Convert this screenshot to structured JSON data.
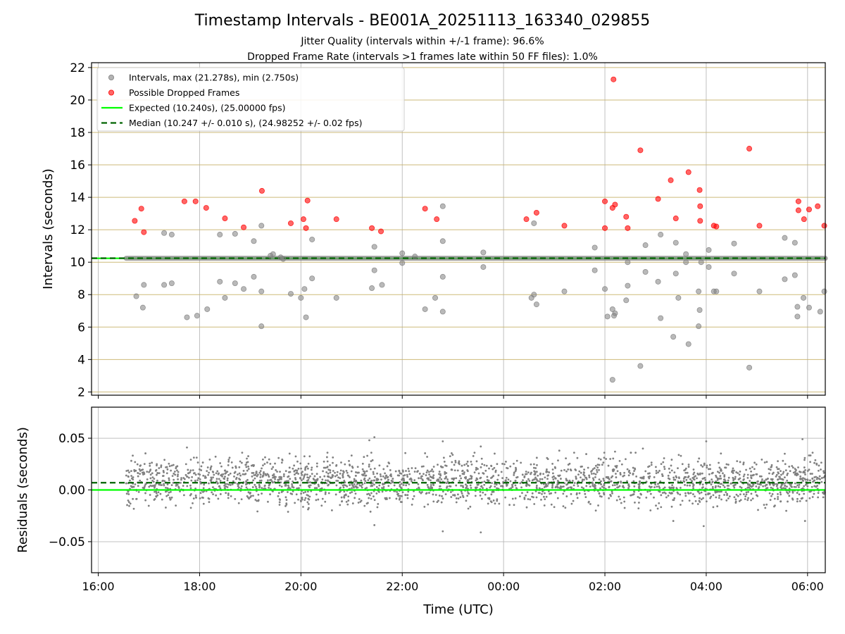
{
  "figure": {
    "title": "Timestamp Intervals - BE001A_20251113_163340_029855",
    "subtitle1": "Jitter Quality (intervals within +/-1 frame): 96.6%",
    "subtitle2": "Dropped Frame Rate (intervals >1 frames late within 50 FF files): 1.0%",
    "xlabel": "Time (UTC)"
  },
  "colors": {
    "interval_points": "#808080",
    "dropped_points": "#ff0000",
    "expected_line": "#00ff00",
    "median_line": "#006400",
    "ygrid_top": "#c8b26a",
    "grid": "#b0b0b0"
  },
  "chart_data": [
    {
      "type": "scatter",
      "name": "intervals",
      "ylabel": "Intervals (seconds)",
      "x_range_hours": [
        15.867,
        30.35
      ],
      "ylim": [
        1.8,
        22.3
      ],
      "yticks": [
        2,
        4,
        6,
        8,
        10,
        12,
        14,
        16,
        18,
        20,
        22
      ],
      "ytick_labels": [
        "2",
        "4",
        "6",
        "8",
        "10",
        "12",
        "14",
        "16",
        "18",
        "20",
        "22"
      ],
      "xticks": [
        16,
        18,
        20,
        22,
        24,
        26,
        28,
        30
      ],
      "xtick_labels": [
        "16:00",
        "18:00",
        "20:00",
        "22:00",
        "00:00",
        "02:00",
        "04:00",
        "06:00"
      ],
      "grid": true,
      "legend_position": "top-left",
      "expected": 10.24,
      "median": 10.247,
      "baseline_band": {
        "x_start": 16.55,
        "x_end": 30.35,
        "y": 10.24
      },
      "legend": [
        {
          "label": "Intervals, max (21.278s), min (2.750s)",
          "kind": "dot-gray"
        },
        {
          "label": "Possible Dropped Frames",
          "kind": "dot-red"
        },
        {
          "label": "Expected (10.240s), (25.00000 fps)",
          "kind": "line-expected"
        },
        {
          "label": "Median (10.247 +/- 0.010 s), (24.98252 +/- 0.02 fps)",
          "kind": "line-median"
        }
      ],
      "series": [
        {
          "name": "Intervals",
          "points": [
            [
              16.75,
              7.9
            ],
            [
              16.88,
              7.2
            ],
            [
              16.9,
              8.6
            ],
            [
              17.3,
              8.6
            ],
            [
              17.3,
              11.8
            ],
            [
              17.45,
              8.7
            ],
            [
              17.45,
              11.7
            ],
            [
              17.75,
              6.6
            ],
            [
              17.95,
              6.7
            ],
            [
              18.15,
              7.1
            ],
            [
              18.4,
              8.8
            ],
            [
              18.4,
              11.7
            ],
            [
              18.5,
              7.8
            ],
            [
              18.7,
              8.7
            ],
            [
              18.7,
              11.75
            ],
            [
              18.87,
              8.35
            ],
            [
              19.07,
              9.1
            ],
            [
              19.07,
              11.3
            ],
            [
              19.22,
              8.2
            ],
            [
              19.22,
              12.25
            ],
            [
              19.22,
              6.05
            ],
            [
              19.4,
              10.4
            ],
            [
              19.45,
              10.5
            ],
            [
              19.6,
              10.3
            ],
            [
              19.65,
              10.2
            ],
            [
              19.8,
              8.05
            ],
            [
              20.0,
              7.8
            ],
            [
              20.07,
              8.35
            ],
            [
              20.1,
              6.6
            ],
            [
              20.22,
              9.0
            ],
            [
              20.22,
              11.4
            ],
            [
              20.7,
              7.8
            ],
            [
              21.4,
              8.4
            ],
            [
              21.45,
              9.5
            ],
            [
              21.45,
              10.95
            ],
            [
              21.6,
              8.6
            ],
            [
              22.0,
              10.55
            ],
            [
              22.0,
              9.95
            ],
            [
              22.25,
              10.35
            ],
            [
              22.45,
              7.1
            ],
            [
              22.65,
              7.8
            ],
            [
              22.8,
              6.95
            ],
            [
              22.8,
              9.1
            ],
            [
              22.8,
              11.3
            ],
            [
              22.8,
              13.45
            ],
            [
              23.6,
              9.7
            ],
            [
              23.6,
              10.6
            ],
            [
              24.55,
              7.8
            ],
            [
              24.6,
              8.0
            ],
            [
              24.6,
              12.4
            ],
            [
              24.65,
              7.4
            ],
            [
              25.2,
              8.2
            ],
            [
              25.8,
              9.5
            ],
            [
              25.8,
              10.9
            ],
            [
              26.0,
              8.35
            ],
            [
              26.05,
              6.65
            ],
            [
              26.15,
              2.75
            ],
            [
              26.15,
              7.1
            ],
            [
              26.18,
              6.7
            ],
            [
              26.2,
              6.85
            ],
            [
              26.42,
              7.65
            ],
            [
              26.45,
              8.55
            ],
            [
              26.45,
              10.0
            ],
            [
              26.7,
              3.6
            ],
            [
              26.8,
              9.4
            ],
            [
              26.8,
              11.05
            ],
            [
              27.05,
              8.8
            ],
            [
              27.1,
              6.55
            ],
            [
              27.1,
              11.7
            ],
            [
              27.35,
              5.4
            ],
            [
              27.4,
              9.3
            ],
            [
              27.4,
              11.2
            ],
            [
              27.45,
              7.8
            ],
            [
              27.6,
              10.5
            ],
            [
              27.6,
              10.0
            ],
            [
              27.65,
              4.95
            ],
            [
              27.85,
              8.2
            ],
            [
              27.85,
              6.05
            ],
            [
              27.87,
              7.05
            ],
            [
              27.9,
              10.0
            ],
            [
              28.05,
              9.7
            ],
            [
              28.05,
              10.75
            ],
            [
              28.15,
              8.2
            ],
            [
              28.2,
              8.2
            ],
            [
              28.55,
              9.3
            ],
            [
              28.55,
              11.15
            ],
            [
              28.85,
              3.5
            ],
            [
              29.05,
              8.2
            ],
            [
              29.55,
              8.95
            ],
            [
              29.55,
              11.5
            ],
            [
              29.75,
              9.2
            ],
            [
              29.75,
              11.2
            ],
            [
              29.8,
              7.25
            ],
            [
              29.8,
              6.65
            ],
            [
              29.92,
              7.8
            ],
            [
              30.03,
              7.2
            ],
            [
              30.25,
              6.95
            ],
            [
              30.33,
              8.2
            ]
          ]
        },
        {
          "name": "Possible Dropped Frames",
          "points": [
            [
              16.72,
              12.55
            ],
            [
              16.85,
              13.3
            ],
            [
              16.9,
              11.85
            ],
            [
              17.7,
              13.75
            ],
            [
              17.92,
              13.75
            ],
            [
              18.13,
              13.35
            ],
            [
              18.5,
              12.7
            ],
            [
              18.87,
              12.15
            ],
            [
              19.23,
              14.4
            ],
            [
              19.8,
              12.4
            ],
            [
              20.05,
              12.65
            ],
            [
              20.1,
              12.1
            ],
            [
              20.13,
              13.8
            ],
            [
              20.7,
              12.65
            ],
            [
              21.4,
              12.1
            ],
            [
              21.58,
              11.9
            ],
            [
              22.45,
              13.3
            ],
            [
              22.68,
              12.65
            ],
            [
              24.45,
              12.65
            ],
            [
              24.65,
              13.05
            ],
            [
              25.2,
              12.25
            ],
            [
              26.0,
              12.1
            ],
            [
              26.0,
              13.75
            ],
            [
              26.15,
              13.35
            ],
            [
              26.17,
              21.27
            ],
            [
              26.2,
              13.55
            ],
            [
              26.42,
              12.8
            ],
            [
              26.45,
              12.1
            ],
            [
              26.7,
              16.9
            ],
            [
              27.05,
              13.9
            ],
            [
              27.3,
              15.05
            ],
            [
              27.4,
              12.7
            ],
            [
              27.65,
              15.55
            ],
            [
              27.87,
              14.45
            ],
            [
              27.88,
              13.45
            ],
            [
              27.88,
              12.55
            ],
            [
              28.15,
              12.25
            ],
            [
              28.2,
              12.2
            ],
            [
              28.85,
              17.0
            ],
            [
              29.05,
              12.25
            ],
            [
              29.82,
              13.75
            ],
            [
              29.82,
              13.2
            ],
            [
              29.93,
              12.65
            ],
            [
              30.03,
              13.25
            ],
            [
              30.2,
              13.45
            ],
            [
              30.33,
              12.25
            ]
          ]
        }
      ]
    },
    {
      "type": "scatter",
      "name": "residuals",
      "ylabel": "Residuals (seconds)",
      "x_range_hours": [
        15.867,
        30.35
      ],
      "ylim": [
        -0.08,
        0.08
      ],
      "yticks": [
        -0.05,
        0.0,
        0.05
      ],
      "ytick_labels": [
        "−0.05",
        "0.00",
        "0.05"
      ],
      "xticks": [
        16,
        18,
        20,
        22,
        24,
        26,
        28,
        30
      ],
      "xtick_labels": [
        "16:00",
        "18:00",
        "20:00",
        "22:00",
        "00:00",
        "02:00",
        "04:00",
        "06:00"
      ],
      "grid": true,
      "expected": 0.0,
      "median": 0.007,
      "noise": {
        "x_start": 16.55,
        "x_end": 30.35,
        "center": 0.008,
        "sd": 0.011,
        "count": 2500
      },
      "outliers": [
        [
          17.75,
          0.041
        ],
        [
          21.35,
          0.048
        ],
        [
          21.45,
          0.051
        ],
        [
          21.45,
          -0.034
        ],
        [
          22.8,
          0.047
        ],
        [
          22.8,
          -0.04
        ],
        [
          23.55,
          0.042
        ],
        [
          23.55,
          -0.041
        ],
        [
          25.1,
          0.038
        ],
        [
          26.2,
          0.037
        ],
        [
          26.75,
          0.04
        ],
        [
          27.35,
          -0.03
        ],
        [
          27.95,
          -0.035
        ],
        [
          28.0,
          0.047
        ],
        [
          29.55,
          0.035
        ],
        [
          29.9,
          0.049
        ],
        [
          29.95,
          -0.03
        ],
        [
          30.1,
          0.036
        ]
      ]
    }
  ]
}
